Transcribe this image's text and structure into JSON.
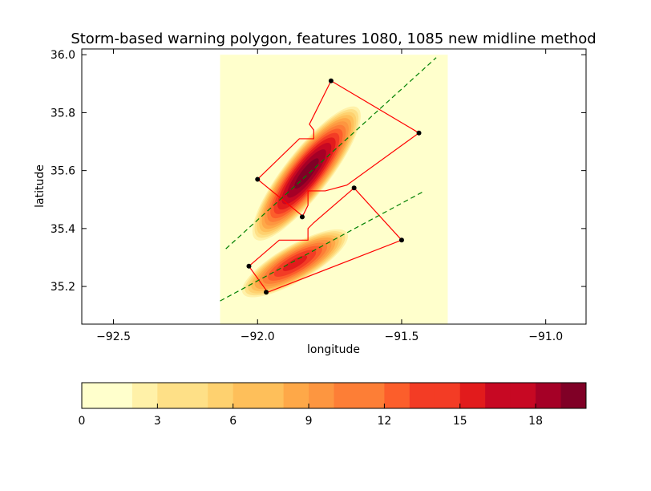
{
  "chart_data": [
    {
      "type": "heatmap",
      "title": "Storm-based warning polygon, features 1080, 1085 new midline method",
      "xlabel": "longitude",
      "ylabel": "latitude",
      "xlim": [
        -92.61,
        -90.86
      ],
      "ylim": [
        35.07,
        36.02
      ],
      "xticks": [
        -92.5,
        -92.0,
        -91.5,
        -91.0
      ],
      "xtick_labels": [
        "−92.5",
        "−92.0",
        "−91.5",
        "−91.0"
      ],
      "yticks": [
        35.2,
        35.4,
        35.6,
        35.8,
        36.0
      ],
      "ytick_labels": [
        "35.2",
        "35.4",
        "35.6",
        "35.8",
        "36.0"
      ],
      "grid": false,
      "field_extent": {
        "lon": [
          -92.13,
          -91.34
        ],
        "lat": [
          35.07,
          36.0
        ]
      },
      "field_peaks": [
        {
          "lon": -91.83,
          "lat": 35.59,
          "value": 19.5,
          "major_deg": 9.0,
          "minor_deg": 0.06,
          "length_deg": 0.3,
          "width_deg": 0.08
        },
        {
          "lon": -91.87,
          "lat": 35.28,
          "value": 15.0,
          "major_deg": 20.0,
          "minor_deg": 0.05,
          "length_deg": 0.22,
          "width_deg": 0.065
        }
      ],
      "polygons": [
        {
          "name": "feature 1080",
          "color": "#ff0000",
          "points": [
            [
              -91.745,
              35.91
            ],
            [
              -91.44,
              35.73
            ],
            [
              -91.69,
              35.55
            ],
            [
              -91.765,
              35.53
            ],
            [
              -91.775,
              35.53
            ],
            [
              -91.825,
              35.53
            ],
            [
              -91.825,
              35.48
            ],
            [
              -91.845,
              35.44
            ],
            [
              -91.84,
              35.44
            ],
            [
              -92.0,
              35.57
            ],
            [
              -91.855,
              35.71
            ],
            [
              -91.805,
              35.71
            ],
            [
              -91.805,
              35.74
            ],
            [
              -91.82,
              35.76
            ],
            [
              -91.745,
              35.91
            ]
          ]
        },
        {
          "name": "feature 1085",
          "color": "#ff0000",
          "points": [
            [
              -91.665,
              35.54
            ],
            [
              -91.5,
              35.36
            ],
            [
              -91.965,
              35.18
            ],
            [
              -92.03,
              35.27
            ],
            [
              -91.925,
              35.36
            ],
            [
              -91.875,
              35.36
            ],
            [
              -91.825,
              35.36
            ],
            [
              -91.825,
              35.4
            ],
            [
              -91.805,
              35.42
            ],
            [
              -91.665,
              35.54
            ]
          ]
        }
      ],
      "vertices": [
        [
          -91.745,
          35.91
        ],
        [
          -91.44,
          35.73
        ],
        [
          -92.0,
          35.57
        ],
        [
          -91.845,
          35.44
        ],
        [
          -91.665,
          35.54
        ],
        [
          -91.5,
          35.36
        ],
        [
          -92.03,
          35.27
        ],
        [
          -91.97,
          35.18
        ]
      ],
      "midlines": [
        {
          "color": "#008000",
          "style": "dashed",
          "points": [
            [
              -92.11,
              35.33
            ],
            [
              -91.38,
              35.99
            ]
          ]
        },
        {
          "color": "#008000",
          "style": "dashed",
          "points": [
            [
              -92.13,
              35.15
            ],
            [
              -91.42,
              35.53
            ]
          ]
        }
      ]
    },
    {
      "type": "colorbar",
      "range": [
        0,
        20
      ],
      "levels": [
        0,
        1,
        2,
        3,
        4,
        5,
        6,
        7,
        8,
        9,
        10,
        11,
        12,
        13,
        14,
        15,
        16,
        17,
        18,
        19,
        20
      ],
      "ticks": [
        0,
        3,
        6,
        9,
        12,
        15,
        18
      ],
      "tick_labels": [
        "0",
        "3",
        "6",
        "9",
        "12",
        "15",
        "18"
      ],
      "colormap": "YlOrRd",
      "colors": [
        "#ffffcc",
        "#fff1a8",
        "#fee087",
        "#fed16f",
        "#febf5a",
        "#fea848",
        "#fd9640",
        "#fd7e36",
        "#fc5e2b",
        "#f33c25",
        "#e21b1c",
        "#c70823",
        "#a50026",
        "#800026"
      ]
    }
  ]
}
